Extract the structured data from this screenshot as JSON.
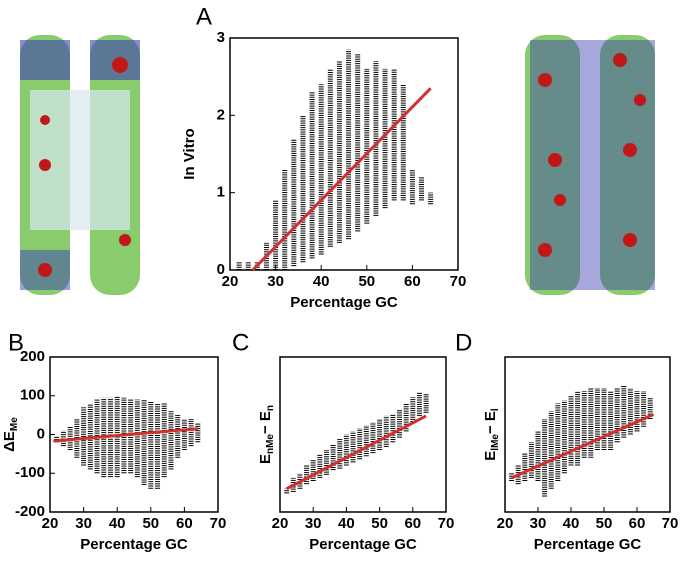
{
  "chart_data": [
    {
      "type": "range",
      "panel": "A",
      "xlabel": "Percentage GC",
      "ylabel": [
        "In Vitro"
      ],
      "xlim": [
        20,
        70
      ],
      "ylim": [
        0,
        3
      ],
      "xticks": [
        20,
        30,
        40,
        50,
        60,
        70
      ],
      "yticks": [
        0,
        1,
        2,
        3
      ],
      "color": "#000000",
      "x": [
        22,
        24,
        26,
        28,
        30,
        32,
        34,
        36,
        38,
        40,
        42,
        44,
        46,
        48,
        50,
        52,
        54,
        56,
        58,
        60,
        62,
        64
      ],
      "low": [
        0,
        0,
        0,
        0,
        0,
        0,
        0.05,
        0.1,
        0.15,
        0.2,
        0.3,
        0.35,
        0.4,
        0.5,
        0.6,
        0.7,
        0.8,
        0.9,
        0.9,
        0.85,
        0.9,
        0.85
      ],
      "high": [
        0.1,
        0.1,
        0.1,
        0.35,
        0.9,
        1.3,
        1.7,
        2.0,
        2.3,
        2.4,
        2.6,
        2.7,
        2.85,
        2.8,
        2.6,
        2.7,
        2.6,
        2.6,
        2.4,
        1.3,
        1.2,
        1.0
      ],
      "fit": {
        "color": "#d0312d",
        "x": [
          25,
          64
        ],
        "y": [
          0,
          2.35
        ]
      }
    },
    {
      "type": "range",
      "panel": "B",
      "xlabel": "Percentage GC",
      "ylabel": [
        "ΔE",
        "Me"
      ],
      "xlim": [
        20,
        70
      ],
      "ylim": [
        -200,
        200
      ],
      "xticks": [
        20,
        30,
        40,
        50,
        60,
        70
      ],
      "yticks": [
        -200,
        -100,
        0,
        100,
        200
      ],
      "color": "#000000",
      "x": [
        22,
        24,
        26,
        28,
        30,
        32,
        34,
        36,
        38,
        40,
        42,
        44,
        46,
        48,
        50,
        52,
        54,
        56,
        58,
        60,
        62,
        64
      ],
      "low": [
        -20,
        -30,
        -40,
        -60,
        -80,
        -90,
        -100,
        -110,
        -110,
        -110,
        -100,
        -100,
        -110,
        -130,
        -140,
        -140,
        -110,
        -90,
        -60,
        -40,
        -30,
        -20
      ],
      "high": [
        -5,
        10,
        20,
        40,
        70,
        80,
        90,
        95,
        95,
        100,
        95,
        90,
        90,
        90,
        85,
        80,
        80,
        60,
        50,
        40,
        40,
        30
      ],
      "fit": {
        "color": "#d0312d",
        "x": [
          21,
          64
        ],
        "y": [
          -17,
          15
        ]
      }
    },
    {
      "type": "range",
      "panel": "C",
      "xlabel": "Percentage GC",
      "ylabel": [
        "E",
        "nMe",
        "− E",
        "n"
      ],
      "xlim": [
        20,
        70
      ],
      "ylim": [
        0,
        100
      ],
      "xticks": [
        20,
        30,
        40,
        50,
        60,
        70
      ],
      "yticks": [],
      "color": "#000000",
      "x": [
        22,
        24,
        26,
        28,
        30,
        32,
        34,
        36,
        38,
        40,
        42,
        44,
        46,
        48,
        50,
        52,
        54,
        56,
        58,
        60,
        62,
        64
      ],
      "low": [
        12,
        13,
        15,
        18,
        20,
        22,
        24,
        27,
        28,
        30,
        32,
        34,
        36,
        38,
        40,
        42,
        45,
        48,
        52,
        58,
        62,
        64
      ],
      "high": [
        15,
        22,
        25,
        30,
        34,
        37,
        40,
        44,
        47,
        50,
        52,
        54,
        56,
        58,
        60,
        62,
        63,
        66,
        70,
        74,
        77,
        76
      ],
      "fit": {
        "color": "#d0312d",
        "x": [
          22,
          64
        ],
        "y": [
          15,
          62
        ]
      }
    },
    {
      "type": "range",
      "panel": "D",
      "xlabel": "Percentage GC",
      "ylabel": [
        "E",
        "lMe",
        "− E",
        "l"
      ],
      "xlim": [
        20,
        70
      ],
      "ylim": [
        0,
        100
      ],
      "xticks": [
        20,
        30,
        40,
        50,
        60,
        70
      ],
      "yticks": [],
      "color": "#000000",
      "x": [
        22,
        24,
        26,
        28,
        30,
        32,
        34,
        36,
        38,
        40,
        42,
        44,
        46,
        48,
        50,
        52,
        54,
        56,
        58,
        60,
        62,
        64
      ],
      "low": [
        20,
        18,
        20,
        22,
        20,
        10,
        15,
        20,
        25,
        30,
        30,
        35,
        35,
        40,
        40,
        40,
        45,
        48,
        50,
        52,
        55,
        60
      ],
      "high": [
        25,
        30,
        38,
        45,
        52,
        60,
        65,
        70,
        72,
        75,
        78,
        78,
        80,
        80,
        80,
        78,
        80,
        82,
        80,
        78,
        78,
        74
      ],
      "fit": {
        "color": "#d0312d",
        "x": [
          22,
          65
        ],
        "y": [
          22,
          63
        ]
      }
    }
  ]
}
